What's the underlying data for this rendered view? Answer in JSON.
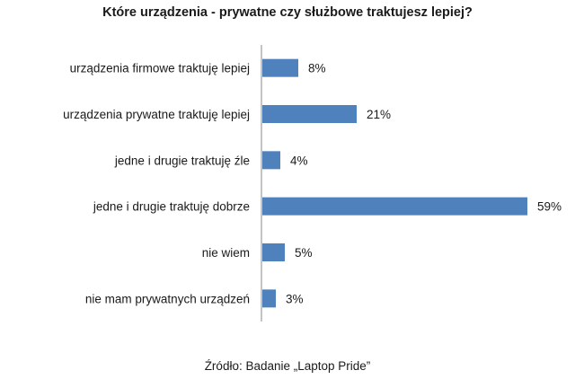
{
  "chart_data": {
    "type": "bar",
    "orientation": "horizontal",
    "title": "Które urządzenia - prywatne czy służbowe traktujesz lepiej?",
    "categories": [
      "urządzenia firmowe traktuję lepiej",
      "urządzenia prywatne traktuję lepiej",
      "jedne i drugie traktuję źle",
      "jedne i drugie traktuję dobrze",
      "nie wiem",
      "nie mam prywatnych urządzeń"
    ],
    "values": [
      8,
      21,
      4,
      59,
      5,
      3
    ],
    "value_labels": [
      "8%",
      "21%",
      "4%",
      "59%",
      "5%",
      "3%"
    ],
    "bar_color": "#4f81bd",
    "xlim": [
      0,
      60
    ],
    "grid": false,
    "legend": "none"
  },
  "source": "Źródło: Badanie „Laptop Pride”"
}
